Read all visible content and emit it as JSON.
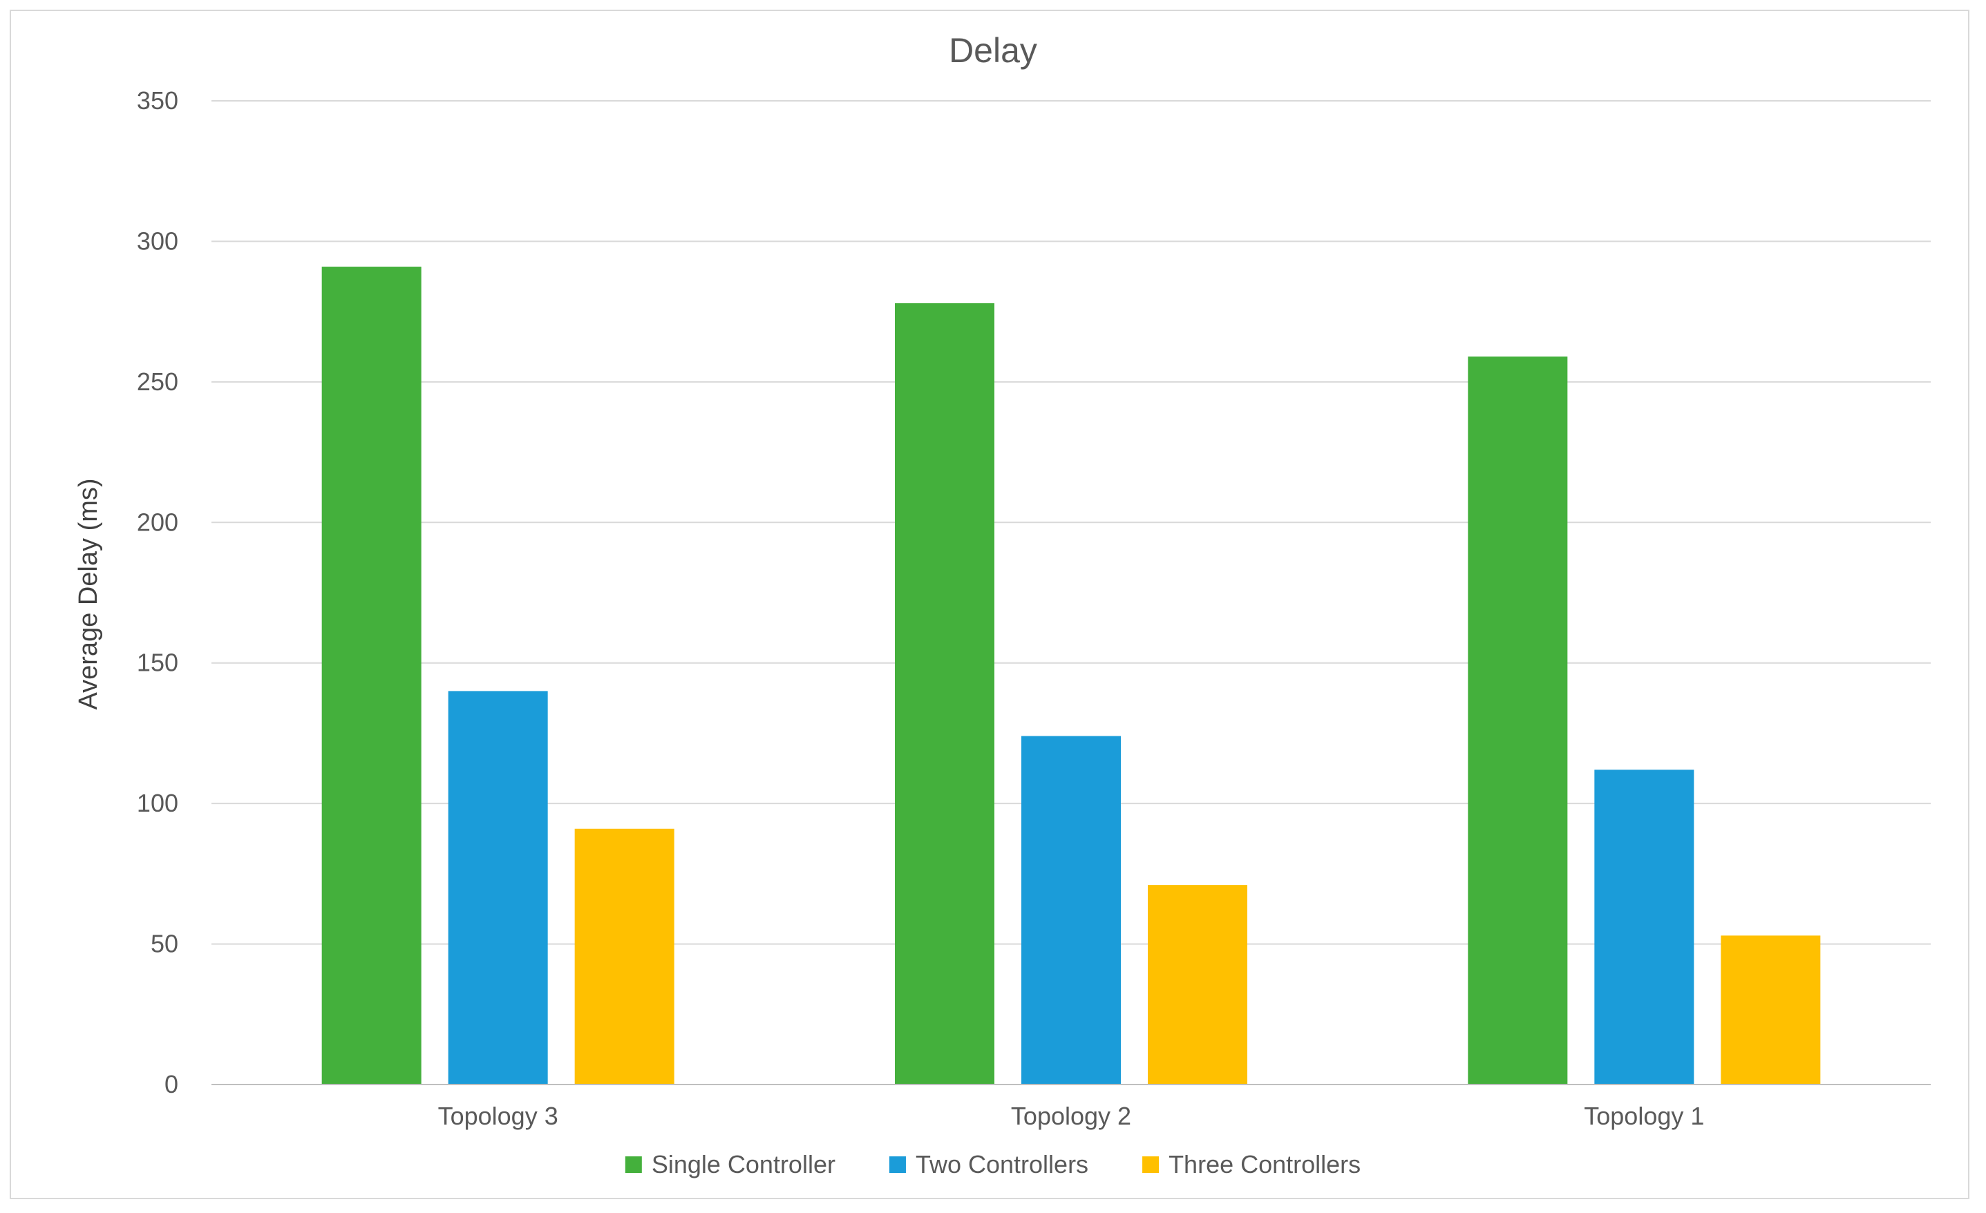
{
  "chart_data": {
    "type": "bar",
    "title": "Delay",
    "xlabel": "",
    "ylabel": "Average Delay (ms)",
    "ylim": [
      0,
      350
    ],
    "yticks": [
      0,
      50,
      100,
      150,
      200,
      250,
      300,
      350
    ],
    "grid": true,
    "legend_position": "bottom",
    "categories": [
      "Topology 3",
      "Topology 2",
      "Topology 1"
    ],
    "series": [
      {
        "name": "Single Controller",
        "color": "#44b03c",
        "values": [
          291,
          278,
          259
        ]
      },
      {
        "name": "Two Controllers",
        "color": "#1b9cd9",
        "values": [
          140,
          124,
          112
        ]
      },
      {
        "name": "Three Controllers",
        "color": "#ffc000",
        "values": [
          91,
          71,
          53
        ]
      }
    ]
  }
}
